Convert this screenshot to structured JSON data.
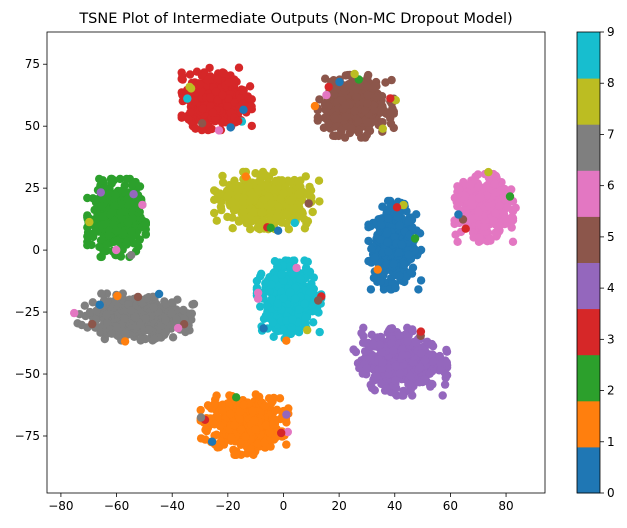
{
  "chart_data": {
    "type": "scatter",
    "title": "TSNE Plot of Intermediate Outputs (Non-MC Dropout Model)",
    "xlabel": "",
    "ylabel": "",
    "xlim": [
      -85,
      94
    ],
    "ylim": [
      -98,
      88
    ],
    "xticks": [
      -80,
      -60,
      -40,
      -20,
      0,
      20,
      40,
      60,
      80
    ],
    "yticks": [
      -75,
      -50,
      -25,
      0,
      25,
      50,
      75
    ],
    "grid": false,
    "colormap": "tab10",
    "colorbar": {
      "label": "",
      "ticks": [
        0,
        1,
        2,
        3,
        4,
        5,
        6,
        7,
        8,
        9
      ],
      "colors": [
        "#1f77b4",
        "#ff7f0e",
        "#2ca02c",
        "#d62728",
        "#9467bd",
        "#8c564b",
        "#e377c2",
        "#7f7f7f",
        "#bcbd22",
        "#17becf"
      ]
    },
    "clusters": [
      {
        "label": 0,
        "color": "#1f77b4",
        "center": [
          40,
          2
        ],
        "spread": [
          9,
          17
        ]
      },
      {
        "label": 1,
        "color": "#ff7f0e",
        "center": [
          -14,
          -70
        ],
        "spread": [
          15,
          12
        ]
      },
      {
        "label": 2,
        "color": "#2ca02c",
        "center": [
          -60,
          13
        ],
        "spread": [
          10,
          15
        ]
      },
      {
        "label": 3,
        "color": "#d62728",
        "center": [
          -24,
          61
        ],
        "spread": [
          12,
          12
        ]
      },
      {
        "label": 4,
        "color": "#9467bd",
        "center": [
          42,
          -45
        ],
        "spread": [
          16,
          13
        ]
      },
      {
        "label": 5,
        "color": "#8c564b",
        "center": [
          26,
          58
        ],
        "spread": [
          13,
          12
        ]
      },
      {
        "label": 6,
        "color": "#e377c2",
        "center": [
          72,
          17
        ],
        "spread": [
          10,
          13
        ]
      },
      {
        "label": 7,
        "color": "#7f7f7f",
        "center": [
          -53,
          -27
        ],
        "spread": [
          20,
          9
        ]
      },
      {
        "label": 8,
        "color": "#bcbd22",
        "center": [
          -6,
          20
        ],
        "spread": [
          18,
          11
        ]
      },
      {
        "label": 9,
        "color": "#17becf",
        "center": [
          2,
          -20
        ],
        "spread": [
          11,
          15
        ]
      }
    ]
  }
}
